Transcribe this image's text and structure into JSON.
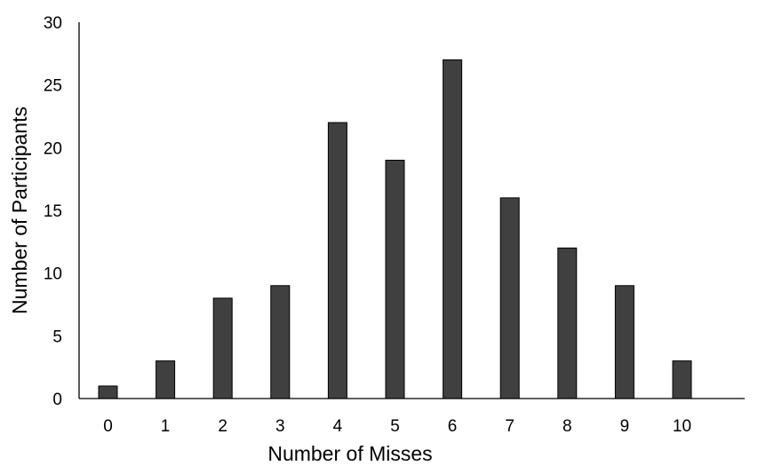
{
  "chart_data": {
    "type": "bar",
    "title": "",
    "xlabel": "Number of Misses",
    "ylabel": "Number of Participants",
    "categories": [
      "0",
      "1",
      "2",
      "3",
      "4",
      "5",
      "6",
      "7",
      "8",
      "9",
      "10"
    ],
    "values": [
      1,
      3,
      8,
      9,
      22,
      19,
      27,
      16,
      12,
      9,
      3
    ],
    "ylim": [
      0,
      30
    ],
    "yticks": [
      "0",
      "5",
      "10",
      "15",
      "20",
      "25",
      "30"
    ],
    "grid": false,
    "legend": "none",
    "bar_color": "#404040",
    "bar_edge_color": "#000000",
    "axis_color": "#000000"
  }
}
